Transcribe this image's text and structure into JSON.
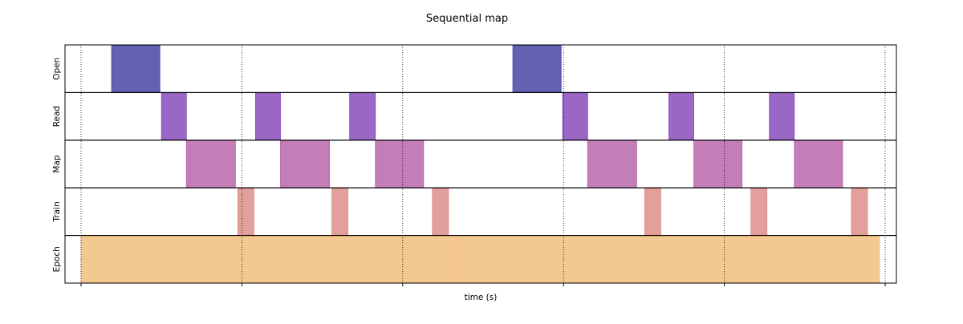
{
  "chart_data": {
    "type": "timeline",
    "title": "Sequential map",
    "xlabel": "time (s)",
    "xlim": [
      0,
      1.0
    ],
    "grid_x": [
      0.0,
      0.2,
      0.4,
      0.6,
      0.8,
      1.0
    ],
    "tick_labels_visible": false,
    "rows": [
      {
        "label": "Open",
        "color": "#3f3fa0",
        "spans": [
          [
            0.038,
            0.098
          ],
          [
            0.537,
            0.597
          ]
        ]
      },
      {
        "label": "Read",
        "color": "#8446b8",
        "spans": [
          [
            0.1,
            0.131
          ],
          [
            0.217,
            0.248
          ],
          [
            0.334,
            0.366
          ],
          [
            0.599,
            0.63
          ],
          [
            0.731,
            0.762
          ],
          [
            0.856,
            0.887
          ]
        ]
      },
      {
        "label": "Map",
        "color": "#b661a8",
        "spans": [
          [
            0.131,
            0.192
          ],
          [
            0.248,
            0.309
          ],
          [
            0.366,
            0.426
          ],
          [
            0.63,
            0.691
          ],
          [
            0.762,
            0.822
          ],
          [
            0.887,
            0.947
          ]
        ]
      },
      {
        "label": "Train",
        "color": "#dc8a86",
        "spans": [
          [
            0.195,
            0.215
          ],
          [
            0.312,
            0.332
          ],
          [
            0.437,
            0.457
          ],
          [
            0.701,
            0.721
          ],
          [
            0.833,
            0.853
          ],
          [
            0.958,
            0.978
          ]
        ]
      },
      {
        "label": "Epoch",
        "color": "#f2c07e",
        "spans": [
          [
            0.0,
            0.468
          ],
          [
            0.468,
            0.993
          ]
        ]
      }
    ]
  }
}
